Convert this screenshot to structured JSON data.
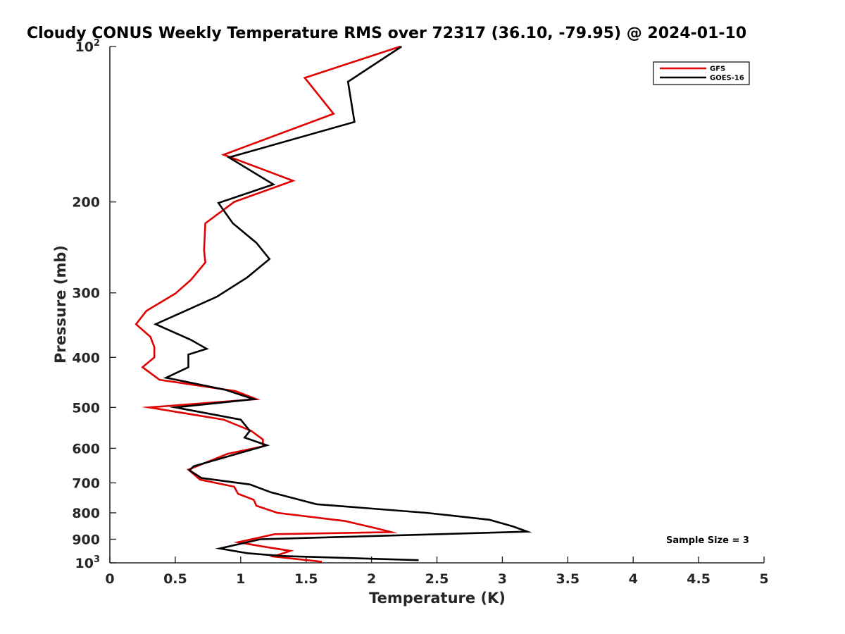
{
  "chart_data": {
    "type": "line",
    "title": "Cloudy CONUS Weekly Temperature RMS over 72317 (36.10, -79.95) @ 2024-01-10",
    "xlabel": "Temperature (K)",
    "ylabel": "Pressure (mb)",
    "xlim": [
      0,
      5
    ],
    "ylim": [
      100,
      1000
    ],
    "y_scale": "log",
    "y_reversed": true,
    "grid": false,
    "legend_position": "top-right",
    "x_ticks": [
      "0",
      "0.5",
      "1",
      "1.5",
      "2",
      "2.5",
      "3",
      "3.5",
      "4",
      "4.5",
      "5"
    ],
    "y_ticks": [
      {
        "value": 100,
        "base": "10",
        "exp": "2"
      },
      {
        "value": 200,
        "base": "200",
        "exp": ""
      },
      {
        "value": 300,
        "base": "300",
        "exp": ""
      },
      {
        "value": 400,
        "base": "400",
        "exp": ""
      },
      {
        "value": 500,
        "base": "500",
        "exp": ""
      },
      {
        "value": 600,
        "base": "600",
        "exp": ""
      },
      {
        "value": 700,
        "base": "700",
        "exp": ""
      },
      {
        "value": 800,
        "base": "800",
        "exp": ""
      },
      {
        "value": 900,
        "base": "900",
        "exp": ""
      },
      {
        "value": 1000,
        "base": "10",
        "exp": "3"
      }
    ],
    "series": [
      {
        "name": "GFS",
        "color": "#e00000",
        "points": [
          [
            2.22,
            100
          ],
          [
            1.49,
            115
          ],
          [
            1.71,
            135
          ],
          [
            0.87,
            162
          ],
          [
            1.4,
            182
          ],
          [
            0.95,
            200
          ],
          [
            0.73,
            220
          ],
          [
            0.72,
            248
          ],
          [
            0.73,
            262
          ],
          [
            0.62,
            283
          ],
          [
            0.5,
            301
          ],
          [
            0.28,
            325
          ],
          [
            0.2,
            345
          ],
          [
            0.31,
            365
          ],
          [
            0.34,
            382
          ],
          [
            0.34,
            400
          ],
          [
            0.25,
            418
          ],
          [
            0.38,
            442
          ],
          [
            0.96,
            465
          ],
          [
            1.12,
            482
          ],
          [
            0.3,
            500
          ],
          [
            0.87,
            528
          ],
          [
            1.08,
            555
          ],
          [
            1.17,
            577
          ],
          [
            1.17,
            595
          ],
          [
            0.9,
            615
          ],
          [
            0.6,
            660
          ],
          [
            0.69,
            690
          ],
          [
            0.95,
            712
          ],
          [
            0.98,
            735
          ],
          [
            1.1,
            755
          ],
          [
            1.12,
            775
          ],
          [
            1.28,
            800
          ],
          [
            1.8,
            830
          ],
          [
            2.06,
            860
          ],
          [
            2.15,
            872
          ],
          [
            1.26,
            880
          ],
          [
            0.98,
            912
          ],
          [
            1.15,
            928
          ],
          [
            1.38,
            948
          ],
          [
            1.25,
            972
          ],
          [
            1.62,
            995
          ]
        ]
      },
      {
        "name": "GOES-16",
        "color": "#000000",
        "points": [
          [
            2.23,
            100
          ],
          [
            1.82,
            117
          ],
          [
            1.87,
            140
          ],
          [
            0.91,
            164
          ],
          [
            1.25,
            185
          ],
          [
            0.83,
            201
          ],
          [
            0.94,
            220
          ],
          [
            1.12,
            240
          ],
          [
            1.22,
            258
          ],
          [
            1.05,
            280
          ],
          [
            0.82,
            305
          ],
          [
            0.35,
            345
          ],
          [
            0.62,
            370
          ],
          [
            0.74,
            385
          ],
          [
            0.6,
            395
          ],
          [
            0.6,
            418
          ],
          [
            0.43,
            438
          ],
          [
            0.88,
            462
          ],
          [
            1.1,
            482
          ],
          [
            0.5,
            500
          ],
          [
            1.0,
            528
          ],
          [
            1.07,
            555
          ],
          [
            1.03,
            572
          ],
          [
            1.2,
            592
          ],
          [
            0.64,
            650
          ],
          [
            0.61,
            662
          ],
          [
            0.7,
            685
          ],
          [
            1.07,
            705
          ],
          [
            1.23,
            730
          ],
          [
            1.45,
            755
          ],
          [
            1.58,
            770
          ],
          [
            2.42,
            800
          ],
          [
            2.9,
            825
          ],
          [
            3.08,
            850
          ],
          [
            3.19,
            870
          ],
          [
            1.15,
            900
          ],
          [
            0.84,
            938
          ],
          [
            1.05,
            958
          ],
          [
            1.32,
            970
          ],
          [
            2.36,
            988
          ]
        ]
      }
    ],
    "annotation": "Sample Size = 3"
  }
}
